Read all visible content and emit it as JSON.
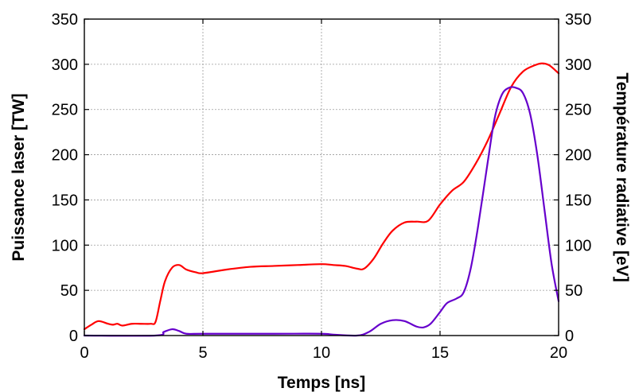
{
  "chart_data": {
    "type": "line",
    "xlabel": "Temps [ns]",
    "ylabel": "Puissance laser [TW]",
    "y2label": "Température radiative [eV]",
    "xlim": [
      0,
      20
    ],
    "ylim": [
      0,
      350
    ],
    "y2lim": [
      0,
      350
    ],
    "xticks": [
      "0",
      "5",
      "10",
      "15",
      "20"
    ],
    "yticks": [
      "0",
      "50",
      "100",
      "150",
      "200",
      "250",
      "300",
      "350"
    ],
    "y2ticks": [
      "0",
      "50",
      "100",
      "150",
      "200",
      "250",
      "300",
      "350"
    ],
    "grid": true,
    "series": [
      {
        "color": "#ff0000",
        "axis": "left",
        "x": [
          0,
          0.3,
          0.6,
          1.0,
          1.2,
          1.4,
          1.6,
          2.0,
          2.4,
          2.8,
          3.0,
          3.2,
          3.4,
          3.7,
          4.0,
          4.3,
          4.7,
          5.0,
          6.0,
          7.0,
          8.0,
          9.0,
          10.0,
          10.5,
          11.0,
          11.5,
          11.8,
          12.2,
          12.6,
          13.0,
          13.5,
          14.0,
          14.5,
          15.0,
          15.5,
          16.0,
          16.5,
          17.0,
          17.5,
          18.0,
          18.5,
          19.0,
          19.3,
          19.6,
          20.0
        ],
        "y": [
          7,
          12,
          16,
          13,
          12,
          13,
          11,
          13,
          13,
          13,
          15,
          38,
          60,
          75,
          78,
          73,
          70,
          69,
          73,
          76,
          77,
          78,
          79,
          78,
          77,
          74,
          74,
          85,
          102,
          116,
          125,
          126,
          127,
          145,
          160,
          170,
          190,
          215,
          245,
          275,
          292,
          299,
          301,
          299,
          290
        ]
      },
      {
        "color": "#6600cc",
        "axis": "right",
        "x": [
          0,
          3.0,
          3.35,
          3.7,
          4.0,
          4.3,
          5.0,
          8.0,
          10.0,
          10.5,
          11.5,
          12.0,
          12.5,
          13.0,
          13.5,
          14.0,
          14.3,
          14.6,
          15.0,
          15.3,
          15.7,
          16.0,
          16.3,
          16.6,
          17.0,
          17.3,
          17.6,
          17.9,
          18.2,
          18.5,
          18.8,
          19.1,
          19.4,
          19.7,
          20.0
        ],
        "y": [
          0,
          0,
          4,
          7,
          5,
          2,
          2,
          2,
          2,
          1,
          0,
          4,
          13,
          17,
          16,
          10,
          9,
          13,
          26,
          36,
          41,
          48,
          75,
          120,
          190,
          240,
          266,
          274,
          274,
          268,
          245,
          200,
          140,
          80,
          38
        ]
      }
    ]
  }
}
